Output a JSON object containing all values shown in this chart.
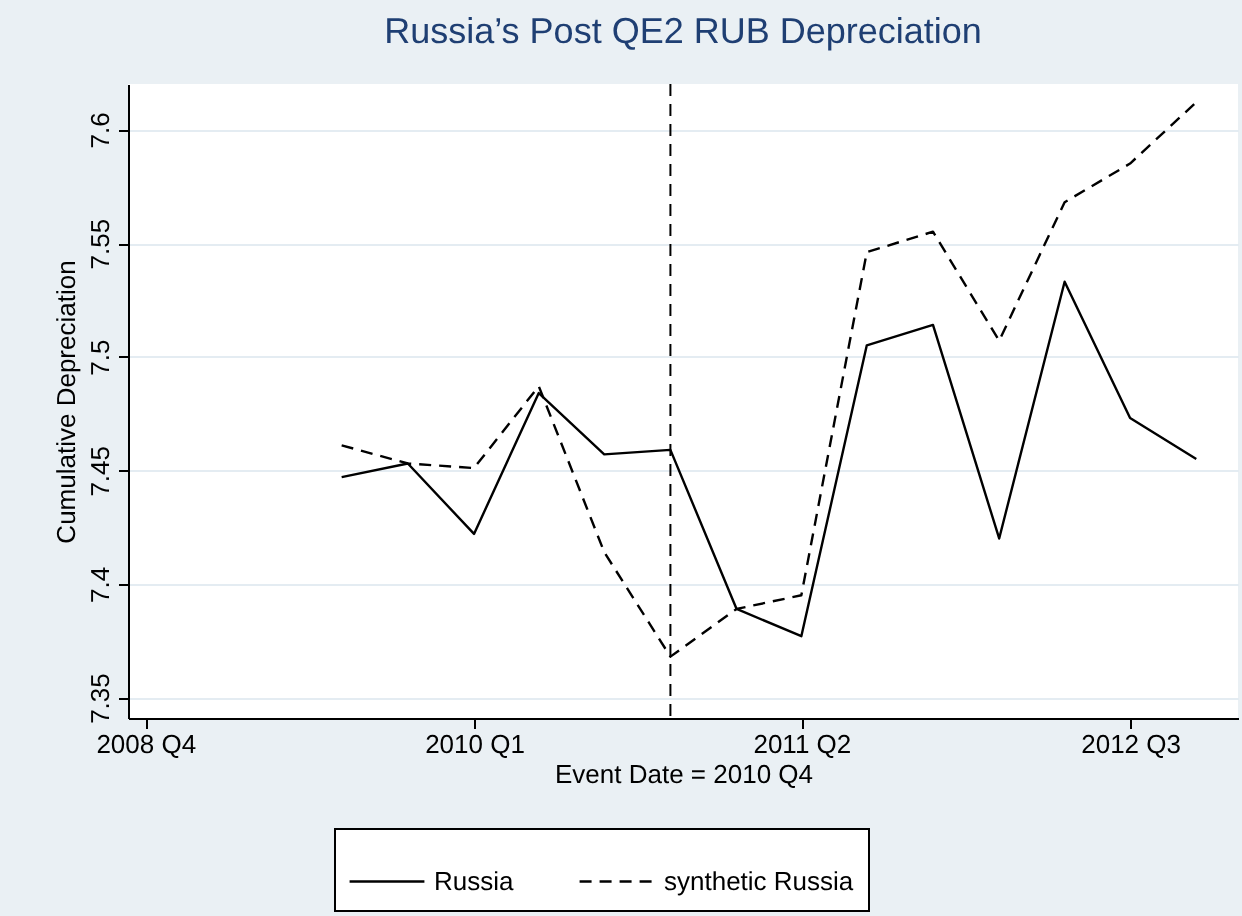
{
  "chart_data": {
    "type": "line",
    "title": "Russia’s Post QE2 RUB Depreciation",
    "xlabel": "Event Date = 2010 Q4",
    "ylabel": "Cumulative Depreciation",
    "x": [
      "2009-07",
      "2009-10",
      "2010-01",
      "2010-04",
      "2010-07",
      "2010-10",
      "2011-01",
      "2011-04",
      "2011-07",
      "2011-10",
      "2012-01",
      "2012-04",
      "2012-07",
      "2012-10"
    ],
    "series": [
      {
        "name": "Russia",
        "color": "#000000",
        "line_style": "solid",
        "values": [
          7.447,
          7.453,
          7.422,
          7.484,
          7.457,
          7.459,
          7.389,
          7.377,
          7.505,
          7.514,
          7.42,
          7.533,
          7.473,
          7.455
        ]
      },
      {
        "name": "synthetic Russia",
        "color": "#000000",
        "line_style": "dashed",
        "values": [
          7.461,
          7.453,
          7.451,
          7.487,
          7.414,
          7.368,
          7.389,
          7.395,
          7.546,
          7.555,
          7.507,
          7.568,
          7.585,
          7.612
        ]
      }
    ],
    "xlim": [
      "2008-09-07",
      "2012-11-28"
    ],
    "xticks": [
      {
        "value": "2008-10",
        "label": "2008 Q4"
      },
      {
        "value": "2010-01",
        "label": "2010 Q1"
      },
      {
        "value": "2011-04",
        "label": "2011 Q2"
      },
      {
        "value": "2012-07",
        "label": "2012 Q3"
      }
    ],
    "ylim": [
      7.341,
      7.62
    ],
    "yticks": [
      7.35,
      7.4,
      7.45,
      7.5,
      7.55,
      7.6
    ],
    "ref_lines": [
      {
        "axis": "x",
        "value": "2010-10",
        "color": "#000000",
        "line_style": "dashed"
      }
    ],
    "grid": "y",
    "legend": "bottom"
  }
}
